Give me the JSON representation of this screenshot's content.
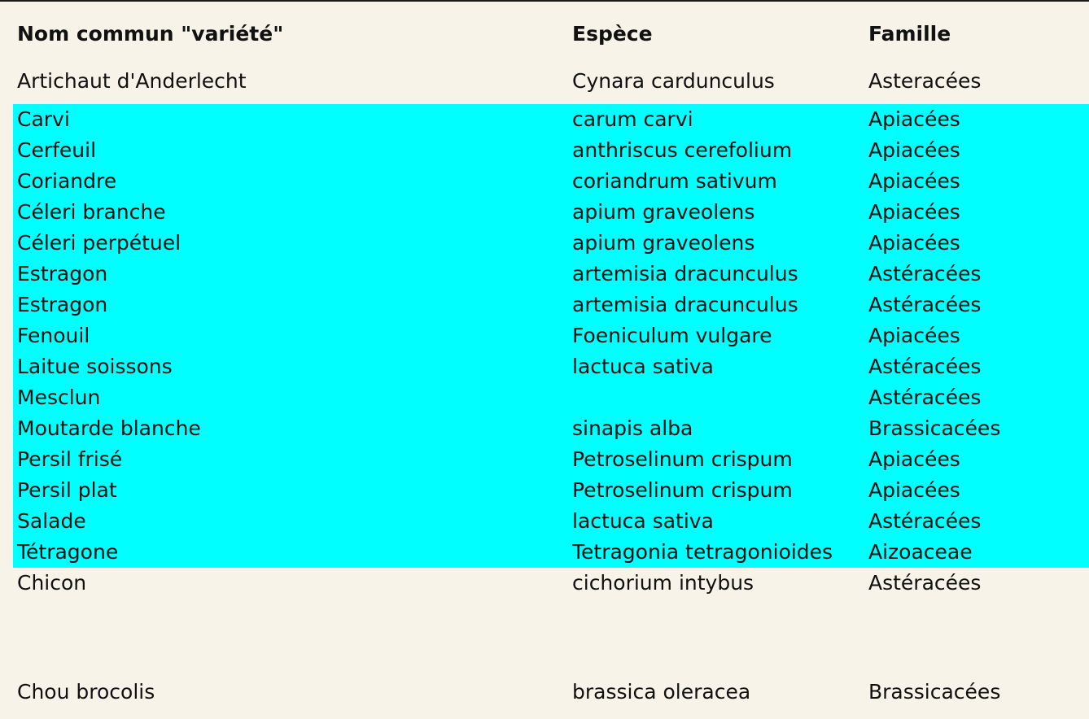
{
  "table": {
    "headers": {
      "name": "Nom commun \"variété\"",
      "species": "Espèce",
      "family": "Famille"
    },
    "rows": [
      {
        "name": "Artichaut d'Anderlecht",
        "species": "Cynara cardunculus",
        "family": "Asteracées",
        "highlighted": false
      },
      {
        "name": "Carvi",
        "species": "carum carvi",
        "family": "Apiacées",
        "highlighted": true
      },
      {
        "name": "Cerfeuil",
        "species": "anthriscus cerefolium",
        "family": "Apiacées",
        "highlighted": true
      },
      {
        "name": "Coriandre",
        "species": "coriandrum sativum",
        "family": "Apiacées",
        "highlighted": true
      },
      {
        "name": "Céleri branche",
        "species": "apium graveolens",
        "family": "Apiacées",
        "highlighted": true
      },
      {
        "name": "Céleri perpétuel",
        "species": "apium graveolens",
        "family": "Apiacées",
        "highlighted": true
      },
      {
        "name": "Estragon",
        "species": "artemisia dracunculus",
        "family": "Astéracées",
        "highlighted": true
      },
      {
        "name": "Estragon",
        "species": "artemisia dracunculus",
        "family": "Astéracées",
        "highlighted": true
      },
      {
        "name": "Fenouil",
        "species": "Foeniculum vulgare",
        "family": "Apiacées",
        "highlighted": true
      },
      {
        "name": "Laitue soissons",
        "species": "lactuca sativa",
        "family": "Astéracées",
        "highlighted": true
      },
      {
        "name": "Mesclun",
        "species": "",
        "family": "Astéracées",
        "highlighted": true
      },
      {
        "name": "Moutarde blanche",
        "species": "sinapis alba",
        "family": "Brassicacées",
        "highlighted": true
      },
      {
        "name": "Persil frisé",
        "species": "Petroselinum crispum",
        "family": "Apiacées",
        "highlighted": true
      },
      {
        "name": "Persil plat",
        "species": "Petroselinum crispum",
        "family": "Apiacées",
        "highlighted": true
      },
      {
        "name": "Salade",
        "species": "lactuca sativa",
        "family": "Astéracées",
        "highlighted": true
      },
      {
        "name": "Tétragone",
        "species": "Tetragonia tetragonioides",
        "family": "Aizoaceae",
        "highlighted": true
      },
      {
        "name": "Chicon",
        "species": "cichorium intybus",
        "family": "Astéracées",
        "highlighted": false
      },
      {
        "name": "Chou brocolis",
        "species": "brassica oleracea",
        "family": "Brassicacées",
        "highlighted": false
      }
    ]
  },
  "colors": {
    "background": "#f7f3e8",
    "highlight": "#00ffff",
    "text": "#111111"
  }
}
